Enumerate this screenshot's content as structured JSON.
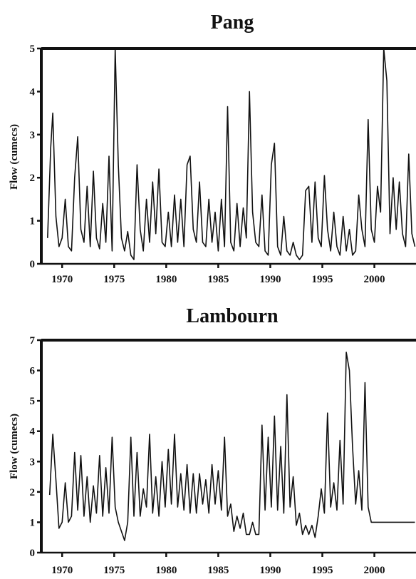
{
  "chart_data": [
    {
      "type": "line",
      "title": "Pang",
      "xlabel": "",
      "ylabel": "Flow (cumecs)",
      "xlim": [
        1968.0,
        2004.0
      ],
      "ylim": [
        0,
        5
      ],
      "x_ticks": [
        1970,
        1975,
        1980,
        1985,
        1990,
        1995,
        2000
      ],
      "y_ticks": [
        0,
        1,
        2,
        3,
        4,
        5
      ],
      "grid": false,
      "series": [
        {
          "x": [
            1968.6,
            1968.9,
            1969.1,
            1969.4,
            1969.7,
            1970.0,
            1970.3,
            1970.6,
            1970.9,
            1971.2,
            1971.5,
            1971.8,
            1972.1,
            1972.4,
            1972.7,
            1973.0,
            1973.3,
            1973.6,
            1973.9,
            1974.2,
            1974.5,
            1974.8,
            1975.1,
            1975.4,
            1975.7,
            1976.0,
            1976.3,
            1976.6,
            1976.9,
            1977.2,
            1977.5,
            1977.8,
            1978.1,
            1978.4,
            1978.7,
            1979.0,
            1979.3,
            1979.6,
            1979.9,
            1980.2,
            1980.5,
            1980.8,
            1981.1,
            1981.4,
            1981.7,
            1982.0,
            1982.3,
            1982.6,
            1982.9,
            1983.2,
            1983.5,
            1983.8,
            1984.1,
            1984.4,
            1984.7,
            1985.0,
            1985.3,
            1985.6,
            1985.9,
            1986.2,
            1986.5,
            1986.8,
            1987.1,
            1987.4,
            1987.7,
            1988.0,
            1988.3,
            1988.6,
            1988.9,
            1989.2,
            1989.5,
            1989.8,
            1990.1,
            1990.4,
            1990.7,
            1991.0,
            1991.3,
            1991.6,
            1991.9,
            1992.2,
            1992.5,
            1992.8,
            1993.1,
            1993.4,
            1993.7,
            1994.0,
            1994.3,
            1994.6,
            1994.9,
            1995.2,
            1995.5,
            1995.8,
            1996.1,
            1996.4,
            1996.7,
            1997.0,
            1997.3,
            1997.6,
            1997.9,
            1998.2,
            1998.5,
            1998.8,
            1999.1,
            1999.4,
            1999.7,
            2000.0,
            2000.3,
            2000.6,
            2000.9,
            2001.2,
            2001.5,
            2001.8,
            2002.1,
            2002.4,
            2002.7,
            2003.0,
            2003.3,
            2003.6,
            2003.9
          ],
          "y": [
            0.6,
            2.7,
            3.5,
            1.1,
            0.4,
            0.6,
            1.5,
            0.4,
            0.3,
            2.0,
            2.95,
            0.8,
            0.5,
            1.8,
            0.4,
            2.15,
            0.6,
            0.35,
            1.4,
            0.5,
            2.5,
            0.3,
            5.0,
            2.3,
            0.6,
            0.3,
            0.75,
            0.2,
            0.1,
            2.3,
            0.8,
            0.3,
            1.5,
            0.5,
            1.9,
            0.7,
            2.2,
            0.5,
            0.4,
            1.2,
            0.4,
            1.6,
            0.5,
            1.5,
            0.4,
            2.3,
            2.5,
            0.8,
            0.5,
            1.9,
            0.5,
            0.4,
            1.5,
            0.5,
            1.2,
            0.3,
            1.5,
            0.4,
            3.65,
            0.5,
            0.3,
            1.4,
            0.4,
            1.3,
            0.6,
            4.0,
            1.2,
            0.5,
            0.4,
            1.6,
            0.3,
            0.2,
            2.3,
            2.8,
            0.4,
            0.2,
            1.1,
            0.3,
            0.2,
            0.5,
            0.2,
            0.1,
            0.2,
            1.7,
            1.8,
            0.5,
            1.9,
            0.6,
            0.4,
            2.05,
            0.8,
            0.3,
            1.2,
            0.4,
            0.2,
            1.1,
            0.3,
            0.8,
            0.2,
            0.3,
            1.6,
            0.8,
            0.4,
            3.35,
            0.8,
            0.5,
            1.8,
            1.2,
            5.0,
            4.25,
            0.7,
            2.0,
            0.8,
            1.9,
            0.7,
            0.4,
            2.55,
            0.7,
            0.4
          ]
        }
      ]
    },
    {
      "type": "line",
      "title": "Lambourn",
      "xlabel": "",
      "ylabel": "Flow (cumecs)",
      "xlim": [
        1968.0,
        2004.0
      ],
      "ylim": [
        0,
        7
      ],
      "x_ticks": [
        1970,
        1975,
        1980,
        1985,
        1990,
        1995,
        2000
      ],
      "y_ticks": [
        0,
        1,
        2,
        3,
        4,
        5,
        6,
        7
      ],
      "grid": false,
      "series": [
        {
          "x": [
            1968.8,
            1969.1,
            1969.4,
            1969.7,
            1970.0,
            1970.3,
            1970.6,
            1970.9,
            1971.2,
            1971.5,
            1971.8,
            1972.1,
            1972.4,
            1972.7,
            1973.0,
            1973.3,
            1973.6,
            1973.9,
            1974.2,
            1974.5,
            1974.8,
            1975.1,
            1975.4,
            1975.7,
            1976.0,
            1976.3,
            1976.6,
            1976.9,
            1977.2,
            1977.5,
            1977.8,
            1978.1,
            1978.4,
            1978.7,
            1979.0,
            1979.3,
            1979.6,
            1979.9,
            1980.2,
            1980.5,
            1980.8,
            1981.1,
            1981.4,
            1981.7,
            1982.0,
            1982.3,
            1982.6,
            1982.9,
            1983.2,
            1983.5,
            1983.8,
            1984.1,
            1984.4,
            1984.7,
            1985.0,
            1985.3,
            1985.6,
            1985.9,
            1986.2,
            1986.5,
            1986.8,
            1987.1,
            1987.4,
            1987.7,
            1988.0,
            1988.3,
            1988.6,
            1988.9,
            1989.2,
            1989.5,
            1989.8,
            1990.1,
            1990.4,
            1990.7,
            1991.0,
            1991.3,
            1991.6,
            1991.9,
            1992.2,
            1992.5,
            1992.8,
            1993.1,
            1993.4,
            1993.7,
            1994.0,
            1994.3,
            1994.6,
            1994.9,
            1995.2,
            1995.5,
            1995.8,
            1996.1,
            1996.4,
            1996.7,
            1997.0,
            1997.3,
            1997.6,
            1997.9,
            1998.2,
            1998.5,
            1998.8,
            1999.1,
            1999.4,
            1999.7,
            2000.0,
            2000.3,
            2000.6,
            2000.9,
            2001.2,
            2001.5,
            2001.8,
            2002.1,
            2002.4,
            2002.7,
            2003.0,
            2003.3,
            2003.6,
            2003.9
          ],
          "y": [
            1.9,
            3.9,
            2.4,
            0.8,
            1.0,
            2.3,
            1.0,
            1.2,
            3.3,
            1.4,
            3.2,
            1.2,
            2.5,
            1.0,
            2.2,
            1.3,
            3.2,
            1.2,
            2.8,
            1.3,
            3.8,
            1.5,
            1.0,
            0.7,
            0.4,
            1.0,
            3.8,
            1.2,
            3.3,
            1.2,
            2.1,
            1.5,
            3.9,
            1.3,
            2.5,
            1.2,
            3.0,
            1.5,
            3.4,
            1.6,
            3.9,
            1.5,
            2.6,
            1.4,
            2.9,
            1.3,
            2.6,
            1.3,
            2.6,
            1.6,
            2.4,
            1.3,
            2.9,
            1.6,
            2.7,
            1.4,
            3.8,
            1.2,
            1.6,
            0.7,
            1.2,
            0.8,
            1.3,
            0.6,
            0.6,
            1.0,
            0.6,
            0.6,
            4.2,
            1.4,
            3.8,
            1.5,
            4.5,
            1.4,
            3.5,
            1.3,
            5.2,
            1.5,
            2.5,
            0.9,
            1.3,
            0.6,
            0.9,
            0.6,
            0.9,
            0.5,
            1.2,
            2.1,
            1.3,
            4.6,
            1.5,
            2.3,
            1.4,
            3.7,
            1.6,
            6.6,
            6.0,
            3.5,
            1.6,
            2.7,
            1.4,
            5.6,
            1.5,
            1.0,
            1.0,
            1.0,
            1.0,
            1.0,
            1.0,
            1.0,
            1.0,
            1.0,
            1.0,
            1.0,
            1.0,
            1.0,
            1.0,
            1.0
          ]
        }
      ]
    }
  ]
}
